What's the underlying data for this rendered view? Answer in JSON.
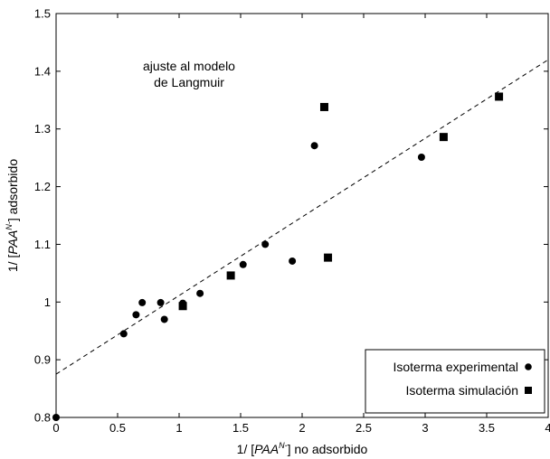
{
  "chart_data": {
    "type": "scatter",
    "xlabel": {
      "prefix": "1/ [",
      "main": "PAA",
      "sup": "N-",
      "suffix": "] no adsorbido"
    },
    "ylabel": {
      "prefix": "1/ [",
      "main": "PAA",
      "sup": "N-",
      "suffix": "] adsorbido"
    },
    "xlim": [
      0,
      4
    ],
    "ylim": [
      0.8,
      1.5
    ],
    "xticks": [
      "0",
      "0.5",
      "1",
      "1.5",
      "2",
      "2.5",
      "3",
      "3.5",
      "4"
    ],
    "yticks": [
      "0.8",
      "0.9",
      "1",
      "1.1",
      "1.2",
      "1.3",
      "1.4",
      "1.5"
    ],
    "annotation": [
      "ajuste al modelo",
      "de Langmuir"
    ],
    "legend_position": "bottom-right",
    "series": [
      {
        "name": "Isoterma experimental",
        "marker": "circle",
        "points": [
          [
            0.0,
            0.8
          ],
          [
            0.55,
            0.945
          ],
          [
            0.65,
            0.978
          ],
          [
            0.7,
            0.999
          ],
          [
            0.85,
            0.999
          ],
          [
            0.88,
            0.97
          ],
          [
            1.03,
            0.998
          ],
          [
            1.17,
            1.015
          ],
          [
            1.52,
            1.065
          ],
          [
            1.7,
            1.1
          ],
          [
            1.92,
            1.071
          ],
          [
            2.1,
            1.271
          ],
          [
            2.97,
            1.251
          ]
        ]
      },
      {
        "name": "Isoterma simulación",
        "marker": "square",
        "points": [
          [
            1.03,
            0.993
          ],
          [
            1.42,
            1.046
          ],
          [
            2.18,
            1.338
          ],
          [
            2.21,
            1.077
          ],
          [
            3.15,
            1.286
          ],
          [
            3.6,
            1.356
          ]
        ]
      }
    ],
    "fit_line": {
      "style": "dashed",
      "points": [
        [
          0.0,
          0.875
        ],
        [
          4.0,
          1.42
        ]
      ]
    }
  }
}
